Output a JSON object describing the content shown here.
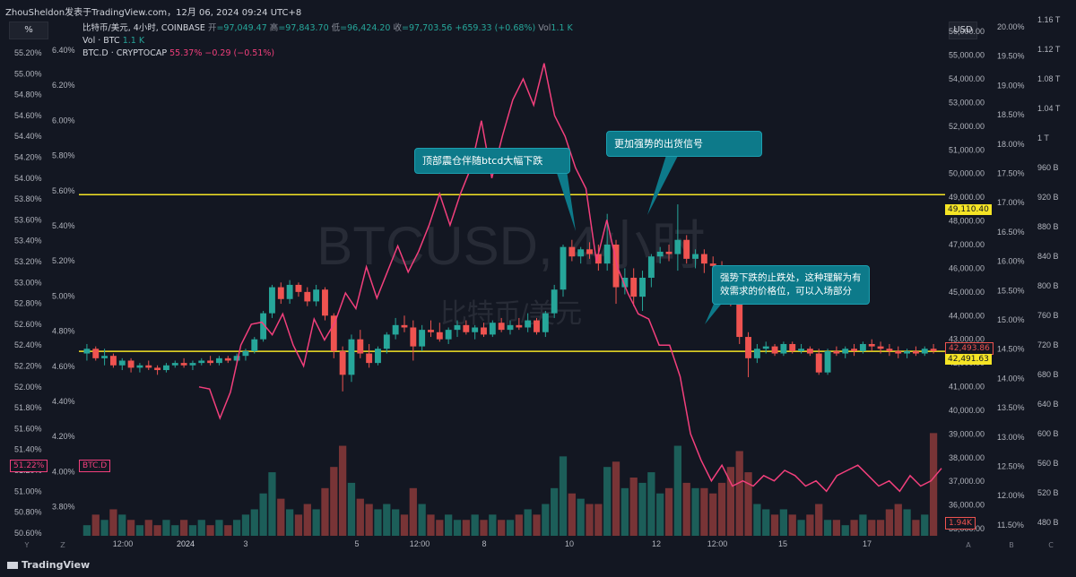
{
  "header": {
    "title_line": "ZhouSheldon发表于TradingView.com，12月 06, 2024 09:24 UTC+8"
  },
  "toolbar": {
    "percent_label": "%",
    "currency_label": "USD"
  },
  "legend": {
    "symbol": "比特币/美元, 4小时, COINBASE",
    "open_label": "开",
    "open": "=97,049.47",
    "high_label": "高",
    "high": "=97,843.70",
    "low_label": "低",
    "low": "=96,424.20",
    "close_label": "收",
    "close": "=97,703.56",
    "change": "+659.33 (+0.68%)",
    "vol_label": "Vol",
    "vol": "1.1 K",
    "row2_name": "Vol · BTC",
    "row2_val": "1.1 K",
    "row3_name": "BTC.D · CRYPTOCAP",
    "row3_val": "55.37%",
    "row3_change": "−0.29 (−0.51%)"
  },
  "watermark": {
    "main": "BTCUSD, 4小时",
    "sub": "比特币/美元"
  },
  "callouts": {
    "c1": "顶部震仓伴随btcd大幅下跌",
    "c2": "更加强势的出货信号",
    "c3a": "强势下跌的止跌处，这种理解为有",
    "c3b": "效需求的价格位，可以入场部分"
  },
  "price_labels": {
    "line_top": "49,110.40",
    "current": "42,493.86",
    "line_bottom": "42,491.63",
    "vol_tag": "1.94K",
    "btcd_tag": "51.22%",
    "btcd_name": "BTC.D"
  },
  "brand": "TradingView",
  "colors": {
    "up": "#26a69a",
    "down": "#ef5350",
    "btcd": "#f23f7c",
    "hline": "#f5e425",
    "bg": "#131722"
  },
  "chart_data": {
    "type": "candlestick",
    "y_price_ticks": [
      "56,000.00",
      "55,000.00",
      "54,000.00",
      "53,000.00",
      "52,000.00",
      "51,000.00",
      "50,000.00",
      "49,000.00",
      "48,000.00",
      "47,000.00",
      "46,000.00",
      "45,000.00",
      "44,000.00",
      "43,000.00",
      "42,000.00",
      "41,000.00",
      "40,000.00",
      "39,000.00",
      "38,000.00",
      "37,000.00",
      "36,000.00",
      "35,000.00"
    ],
    "y_left_ticks": [
      "55.20%",
      "55.00%",
      "54.80%",
      "54.60%",
      "54.40%",
      "54.20%",
      "54.00%",
      "53.80%",
      "53.60%",
      "53.40%",
      "53.20%",
      "53.00%",
      "52.80%",
      "52.60%",
      "52.40%",
      "52.20%",
      "52.00%",
      "51.80%",
      "51.60%",
      "51.40%",
      "51.20%",
      "51.00%",
      "50.80%",
      "50.60%"
    ],
    "y_left2_ticks": [
      "6.40%",
      "6.20%",
      "6.00%",
      "5.80%",
      "5.60%",
      "5.40%",
      "5.20%",
      "5.00%",
      "4.80%",
      "4.60%",
      "4.40%",
      "4.20%",
      "4.00%",
      "3.80%"
    ],
    "y_right_pct_ticks": [
      "20.00%",
      "19.50%",
      "19.00%",
      "18.50%",
      "18.00%",
      "17.50%",
      "17.00%",
      "16.50%",
      "16.00%",
      "15.50%",
      "15.00%",
      "14.50%",
      "14.00%",
      "13.50%",
      "13.00%",
      "12.50%",
      "12.00%",
      "11.50%"
    ],
    "y_right_cap_ticks": [
      "1.16 T",
      "1.12 T",
      "1.08 T",
      "1.04 T",
      "1 T",
      "960 B",
      "920 B",
      "880 B",
      "840 B",
      "800 B",
      "760 B",
      "720 B",
      "680 B",
      "640 B",
      "600 B",
      "560 B",
      "520 B",
      "480 B"
    ],
    "x_ticks": [
      "12:00",
      "2024",
      "3",
      "5",
      "12:00",
      "8",
      "10",
      "12",
      "12:00",
      "15",
      "17"
    ],
    "price_range": [
      34700,
      56500
    ],
    "hlines": [
      49110.4,
      42491.63
    ],
    "candles": [
      [
        42400,
        42800,
        42100,
        42600
      ],
      [
        42600,
        42700,
        42100,
        42200
      ],
      [
        42200,
        42600,
        41900,
        42300
      ],
      [
        42300,
        42400,
        41800,
        41900
      ],
      [
        41900,
        42200,
        41700,
        42100
      ],
      [
        42100,
        42200,
        41600,
        41800
      ],
      [
        41800,
        42000,
        41600,
        41900
      ],
      [
        41900,
        42100,
        41700,
        41800
      ],
      [
        41800,
        41900,
        41500,
        41700
      ],
      [
        41700,
        42000,
        41600,
        41900
      ],
      [
        41900,
        42100,
        41800,
        42000
      ],
      [
        42000,
        42200,
        41800,
        41900
      ],
      [
        41900,
        42100,
        41700,
        42000
      ],
      [
        42000,
        42200,
        41900,
        42100
      ],
      [
        42100,
        42300,
        41900,
        42000
      ],
      [
        42000,
        42300,
        41900,
        42200
      ],
      [
        42200,
        42300,
        42000,
        42100
      ],
      [
        42100,
        42400,
        42000,
        42300
      ],
      [
        42300,
        42600,
        42100,
        42500
      ],
      [
        42500,
        43100,
        42400,
        43000
      ],
      [
        43000,
        44200,
        42900,
        44100
      ],
      [
        44100,
        45300,
        43900,
        45200
      ],
      [
        45200,
        45400,
        44500,
        44700
      ],
      [
        44700,
        45500,
        44500,
        45300
      ],
      [
        45300,
        45400,
        44800,
        45000
      ],
      [
        45000,
        45200,
        44400,
        44600
      ],
      [
        44600,
        45300,
        44400,
        45100
      ],
      [
        45100,
        45200,
        43800,
        44000
      ],
      [
        44000,
        44100,
        42200,
        42500
      ],
      [
        42500,
        42700,
        40800,
        41500
      ],
      [
        41500,
        43200,
        41200,
        43000
      ],
      [
        43000,
        43400,
        42200,
        42400
      ],
      [
        42400,
        42800,
        41800,
        42000
      ],
      [
        42000,
        42700,
        41900,
        42600
      ],
      [
        42600,
        43300,
        42400,
        43200
      ],
      [
        43200,
        43900,
        43000,
        43600
      ],
      [
        43600,
        44000,
        43300,
        43500
      ],
      [
        43500,
        43800,
        42100,
        42700
      ],
      [
        42700,
        43600,
        42500,
        43400
      ],
      [
        43400,
        43800,
        43100,
        43300
      ],
      [
        43300,
        43700,
        42900,
        43000
      ],
      [
        43000,
        43500,
        42800,
        43400
      ],
      [
        43400,
        43800,
        43100,
        43600
      ],
      [
        43600,
        43800,
        43200,
        43300
      ],
      [
        43300,
        43600,
        43000,
        43500
      ],
      [
        43500,
        43700,
        43100,
        43200
      ],
      [
        43200,
        43800,
        43100,
        43700
      ],
      [
        43700,
        43900,
        43300,
        43400
      ],
      [
        43400,
        43800,
        43200,
        43600
      ],
      [
        43600,
        43900,
        43400,
        43500
      ],
      [
        43500,
        44100,
        43300,
        43800
      ],
      [
        43800,
        43900,
        43200,
        43300
      ],
      [
        43300,
        44200,
        43100,
        44100
      ],
      [
        44100,
        45300,
        43900,
        45100
      ],
      [
        45100,
        47000,
        44800,
        46900
      ],
      [
        46900,
        47200,
        46300,
        46500
      ],
      [
        46500,
        46900,
        46200,
        46800
      ],
      [
        46800,
        47100,
        46400,
        46600
      ],
      [
        46600,
        47000,
        45900,
        46200
      ],
      [
        46200,
        48300,
        45900,
        47000
      ],
      [
        47000,
        47200,
        44500,
        45200
      ],
      [
        45200,
        46000,
        44900,
        45600
      ],
      [
        45600,
        46000,
        44400,
        44800
      ],
      [
        44800,
        45900,
        44200,
        45600
      ],
      [
        45600,
        46600,
        45200,
        46500
      ],
      [
        46500,
        46900,
        46200,
        46700
      ],
      [
        46700,
        47000,
        46300,
        46600
      ],
      [
        46600,
        48700,
        45900,
        47200
      ],
      [
        47200,
        47400,
        46200,
        46400
      ],
      [
        46400,
        46800,
        46000,
        46600
      ],
      [
        46600,
        46800,
        45800,
        46200
      ],
      [
        46200,
        46500,
        45900,
        46100
      ],
      [
        46100,
        46300,
        45500,
        45700
      ],
      [
        45700,
        45900,
        44400,
        44600
      ],
      [
        44600,
        44700,
        42800,
        43100
      ],
      [
        43100,
        43300,
        41400,
        42200
      ],
      [
        42200,
        42800,
        42000,
        42600
      ],
      [
        42600,
        42900,
        42400,
        42700
      ],
      [
        42700,
        42800,
        42300,
        42400
      ],
      [
        42400,
        42900,
        42300,
        42800
      ],
      [
        42800,
        42900,
        42400,
        42500
      ],
      [
        42500,
        42800,
        42400,
        42600
      ],
      [
        42600,
        42700,
        42300,
        42400
      ],
      [
        42400,
        42600,
        41500,
        41600
      ],
      [
        41600,
        42600,
        41500,
        42500
      ],
      [
        42500,
        42700,
        42300,
        42400
      ],
      [
        42400,
        42700,
        42200,
        42600
      ],
      [
        42600,
        42800,
        42300,
        42500
      ],
      [
        42500,
        42900,
        42400,
        42800
      ],
      [
        42800,
        43000,
        42500,
        42700
      ],
      [
        42700,
        42900,
        42400,
        42600
      ],
      [
        42600,
        42800,
        42300,
        42500
      ],
      [
        42500,
        42700,
        42200,
        42400
      ],
      [
        42400,
        42600,
        42200,
        42500
      ],
      [
        42500,
        42700,
        42300,
        42400
      ],
      [
        42400,
        42700,
        42300,
        42600
      ],
      [
        42600,
        42800,
        42400,
        42500
      ]
    ],
    "btcd_series_pct": [
      52.0,
      51.98,
      51.7,
      51.95,
      52.4,
      52.6,
      52.62,
      52.5,
      52.7,
      52.4,
      52.2,
      52.65,
      52.45,
      52.62,
      52.9,
      52.75,
      53.15,
      52.85,
      53.1,
      53.35,
      53.1,
      53.3,
      53.55,
      53.85,
      53.55,
      53.85,
      54.1,
      54.55,
      54.0,
      54.4,
      54.75,
      54.95,
      54.7,
      55.1,
      54.6,
      54.4,
      54.1,
      53.9,
      53.2,
      53.6,
      53.15,
      52.9,
      52.7,
      52.65,
      52.4,
      52.4,
      52.1,
      51.55,
      51.3,
      51.1,
      51.25,
      51.05,
      51.1,
      51.05,
      51.15,
      51.1,
      51.2,
      51.15,
      51.05,
      51.1,
      51.0,
      51.15,
      51.2,
      51.25,
      51.15,
      51.05,
      51.1,
      51.0,
      51.15,
      51.05,
      51.1,
      51.22
    ],
    "volume_k": [
      0.2,
      0.4,
      0.3,
      0.5,
      0.4,
      0.3,
      0.2,
      0.3,
      0.2,
      0.3,
      0.2,
      0.3,
      0.2,
      0.3,
      0.2,
      0.3,
      0.2,
      0.3,
      0.4,
      0.5,
      0.8,
      1.2,
      0.7,
      0.5,
      0.4,
      0.6,
      0.5,
      0.9,
      1.3,
      1.7,
      1.0,
      0.7,
      0.6,
      0.5,
      0.6,
      0.5,
      0.4,
      0.9,
      0.6,
      0.4,
      0.3,
      0.4,
      0.3,
      0.3,
      0.4,
      0.3,
      0.4,
      0.3,
      0.3,
      0.4,
      0.5,
      0.4,
      0.6,
      0.9,
      1.5,
      0.8,
      0.7,
      0.6,
      0.6,
      1.3,
      1.4,
      0.9,
      1.1,
      1.0,
      1.2,
      0.8,
      0.9,
      1.7,
      1.0,
      0.9,
      0.9,
      0.8,
      1.0,
      1.3,
      1.6,
      1.2,
      0.6,
      0.5,
      0.4,
      0.5,
      0.4,
      0.3,
      0.4,
      0.6,
      0.3,
      0.3,
      0.2,
      0.3,
      0.4,
      0.3,
      0.3,
      0.5,
      0.6,
      0.5,
      0.3,
      0.4,
      1.94
    ]
  }
}
